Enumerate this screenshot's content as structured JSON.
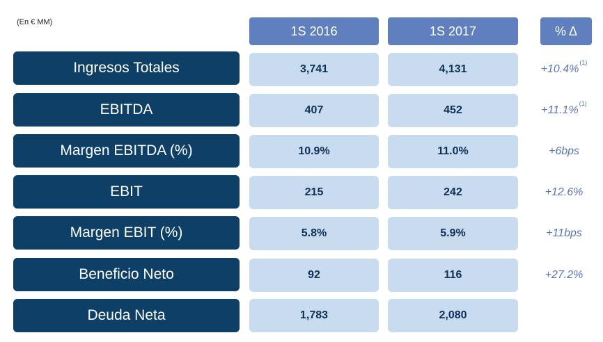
{
  "units": "(En € MM)",
  "headers": {
    "col1": "1S 2016",
    "col2": "1S 2017",
    "delta": "% Δ"
  },
  "rows": [
    {
      "label": "Ingresos Totales",
      "v2016": "3,741",
      "v2017": "4,131",
      "delta": "+10.4%",
      "note": "(1)"
    },
    {
      "label": "EBITDA",
      "v2016": "407",
      "v2017": "452",
      "delta": "+11.1%",
      "note": "(1)"
    },
    {
      "label": "Margen EBITDA (%)",
      "v2016": "10.9%",
      "v2017": "11.0%",
      "delta": "+6bps",
      "note": ""
    },
    {
      "label": "EBIT",
      "v2016": "215",
      "v2017": "242",
      "delta": "+12.6%",
      "note": ""
    },
    {
      "label": "Margen EBIT (%)",
      "v2016": "5.8%",
      "v2017": "5.9%",
      "delta": "+11bps",
      "note": ""
    },
    {
      "label": "Beneficio Neto",
      "v2016": "92",
      "v2017": "116",
      "delta": "+27.2%",
      "note": ""
    },
    {
      "label": "Deuda Neta",
      "v2016": "1,783",
      "v2017": "2,080",
      "delta": "",
      "note": ""
    }
  ]
}
